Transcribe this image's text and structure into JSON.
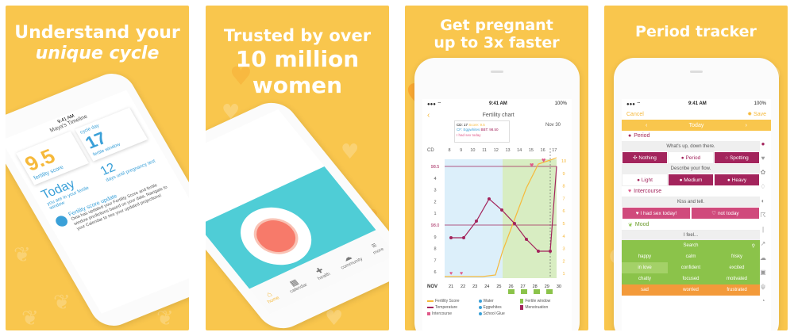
{
  "panel1": {
    "headline_line1": "Understand your",
    "headline_line2": "unique cycle",
    "phone": {
      "time": "9:41 AM",
      "timeline_title": "Maya's Timeline",
      "fertility_score": "9.5",
      "fertility_score_label": "fertility score",
      "cycle_day": "17",
      "cycle_day_label": "cycle day",
      "fertile_window_label": "fertile window",
      "days_until": "12",
      "days_until_label": "days until pregnancy test",
      "today_label": "Today",
      "today_sub": "you are in your fertile window",
      "update_title": "Fertility score update",
      "update_body": "Ovia has updated your Fertility Score and fertile window predictions based on your data. Navigate to your Calendar to see your updated projections!"
    }
  },
  "panel2": {
    "headline_line1": "Trusted by over",
    "headline_line2": "10 million",
    "headline_line3": "women",
    "tabs": [
      "home",
      "calendar",
      "health",
      "community",
      "more"
    ]
  },
  "panel3": {
    "headline_line1": "Get pregnant",
    "headline_line2": "up to 3x faster",
    "phone": {
      "time": "9:41 AM",
      "battery": "100%",
      "title": "Fertility chart",
      "date": "Nov 30",
      "tooltip_cd": "CD: 17",
      "tooltip_score": "Score: 9.5",
      "tooltip_cf": "CF: Eggwhites",
      "tooltip_bbt": "BBT: 98.50",
      "tooltip_note": "I had sex today",
      "cd_label": "CD",
      "cd_numbers": [
        "8",
        "9",
        "10",
        "11",
        "12",
        "13",
        "14",
        "15",
        "16",
        "17"
      ],
      "temp_labels_left": [
        "98.5",
        "4",
        "3",
        "2",
        "1",
        "98.0",
        "9",
        "8",
        "7",
        "6"
      ],
      "score_labels_right": [
        "10",
        "9",
        "8",
        "7",
        "6",
        "5",
        "4",
        "3",
        "2",
        "1"
      ],
      "month_label": "NOV",
      "date_numbers": [
        "21",
        "22",
        "23",
        "24",
        "25",
        "26",
        "27",
        "28",
        "29",
        "30"
      ],
      "legend": [
        {
          "label": "Fertility Score",
          "color": "#f6b93b"
        },
        {
          "label": "Water",
          "color": "#3aa0d8"
        },
        {
          "label": "Fertile window",
          "color": "#8bc34a"
        },
        {
          "label": "Temperature",
          "color": "#a3245c"
        },
        {
          "label": "Eggwhites",
          "color": "#3aa0d8"
        },
        {
          "label": "Menstruation",
          "color": "#a3245c"
        },
        {
          "label": "Intercourse",
          "color": "#e05a8a"
        },
        {
          "label": "School Glue",
          "color": "#3aa0d8"
        }
      ]
    }
  },
  "panel4": {
    "headline": "Period tracker",
    "phone": {
      "time": "9:41 AM",
      "battery": "100%",
      "cancel": "Cancel",
      "save": "Save",
      "today": "Today",
      "period_label": "Period",
      "period_prompt": "What's up, down there.",
      "period_options": [
        "Nothing",
        "Period",
        "Spotting"
      ],
      "flow_prompt": "Describe your flow.",
      "flow_options": [
        "Light",
        "Medium",
        "Heavy"
      ],
      "intercourse_label": "Intercourse",
      "intercourse_prompt": "Kiss and tell.",
      "intercourse_options": [
        "I had sex today!",
        "not today"
      ],
      "mood_label": "Mood",
      "mood_prompt": "I feel...",
      "search_placeholder": "Search",
      "moods": [
        {
          "label": "happy",
          "color": "#8bc34a"
        },
        {
          "label": "calm",
          "color": "#8bc34a"
        },
        {
          "label": "frisky",
          "color": "#8bc34a"
        },
        {
          "label": "in love",
          "color": "#a4d168"
        },
        {
          "label": "confident",
          "color": "#8bc34a"
        },
        {
          "label": "excited",
          "color": "#8bc34a"
        },
        {
          "label": "chatty",
          "color": "#8bc34a"
        },
        {
          "label": "focused",
          "color": "#8bc34a"
        },
        {
          "label": "motivated",
          "color": "#8bc34a"
        },
        {
          "label": "sad",
          "color": "#f39a3a"
        },
        {
          "label": "worried",
          "color": "#f39a3a"
        },
        {
          "label": "frustrated",
          "color": "#f39a3a"
        }
      ]
    }
  },
  "colors": {
    "background": "#f9c64d",
    "accent_magenta": "#a3245c",
    "accent_orange": "#f6b93b",
    "accent_green": "#8bc34a",
    "accent_blue": "#3aa0d8"
  }
}
